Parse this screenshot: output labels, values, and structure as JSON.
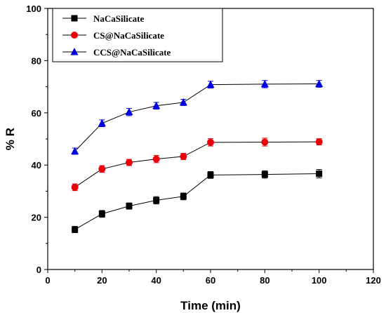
{
  "chart_data": {
    "type": "line",
    "xlabel": "Time (min)",
    "ylabel": "% R",
    "xlim": [
      0,
      120
    ],
    "ylim": [
      0,
      100
    ],
    "xticks": [
      0,
      20,
      40,
      60,
      80,
      100,
      120
    ],
    "yticks": [
      0,
      20,
      40,
      60,
      80,
      100
    ],
    "grid": false,
    "legend_position": "top-left",
    "x": [
      10,
      20,
      30,
      40,
      50,
      60,
      80,
      100
    ],
    "series": [
      {
        "name": "NaCaSilicate",
        "color": "#000000",
        "marker": "square",
        "values": [
          15.3,
          21.3,
          24.3,
          26.5,
          28.0,
          36.2,
          36.4,
          36.7
        ],
        "errors": [
          1.2,
          1.3,
          1.2,
          1.4,
          1.3,
          1.3,
          1.4,
          1.6
        ]
      },
      {
        "name": "CS@NaCaSilicate",
        "color": "#e8000b",
        "marker": "circle",
        "values": [
          31.5,
          38.5,
          41.0,
          42.3,
          43.3,
          48.7,
          48.8,
          48.9
        ],
        "errors": [
          1.3,
          1.3,
          1.2,
          1.4,
          1.2,
          1.4,
          1.5,
          1.2
        ]
      },
      {
        "name": "CCS@NaCaSilicate",
        "color": "#0000e0",
        "marker": "triangle",
        "values": [
          45.3,
          56.0,
          60.3,
          62.7,
          64.0,
          70.8,
          71.0,
          71.1
        ],
        "errors": [
          1.2,
          1.3,
          1.4,
          1.3,
          1.2,
          1.3,
          1.4,
          1.3
        ]
      }
    ]
  }
}
